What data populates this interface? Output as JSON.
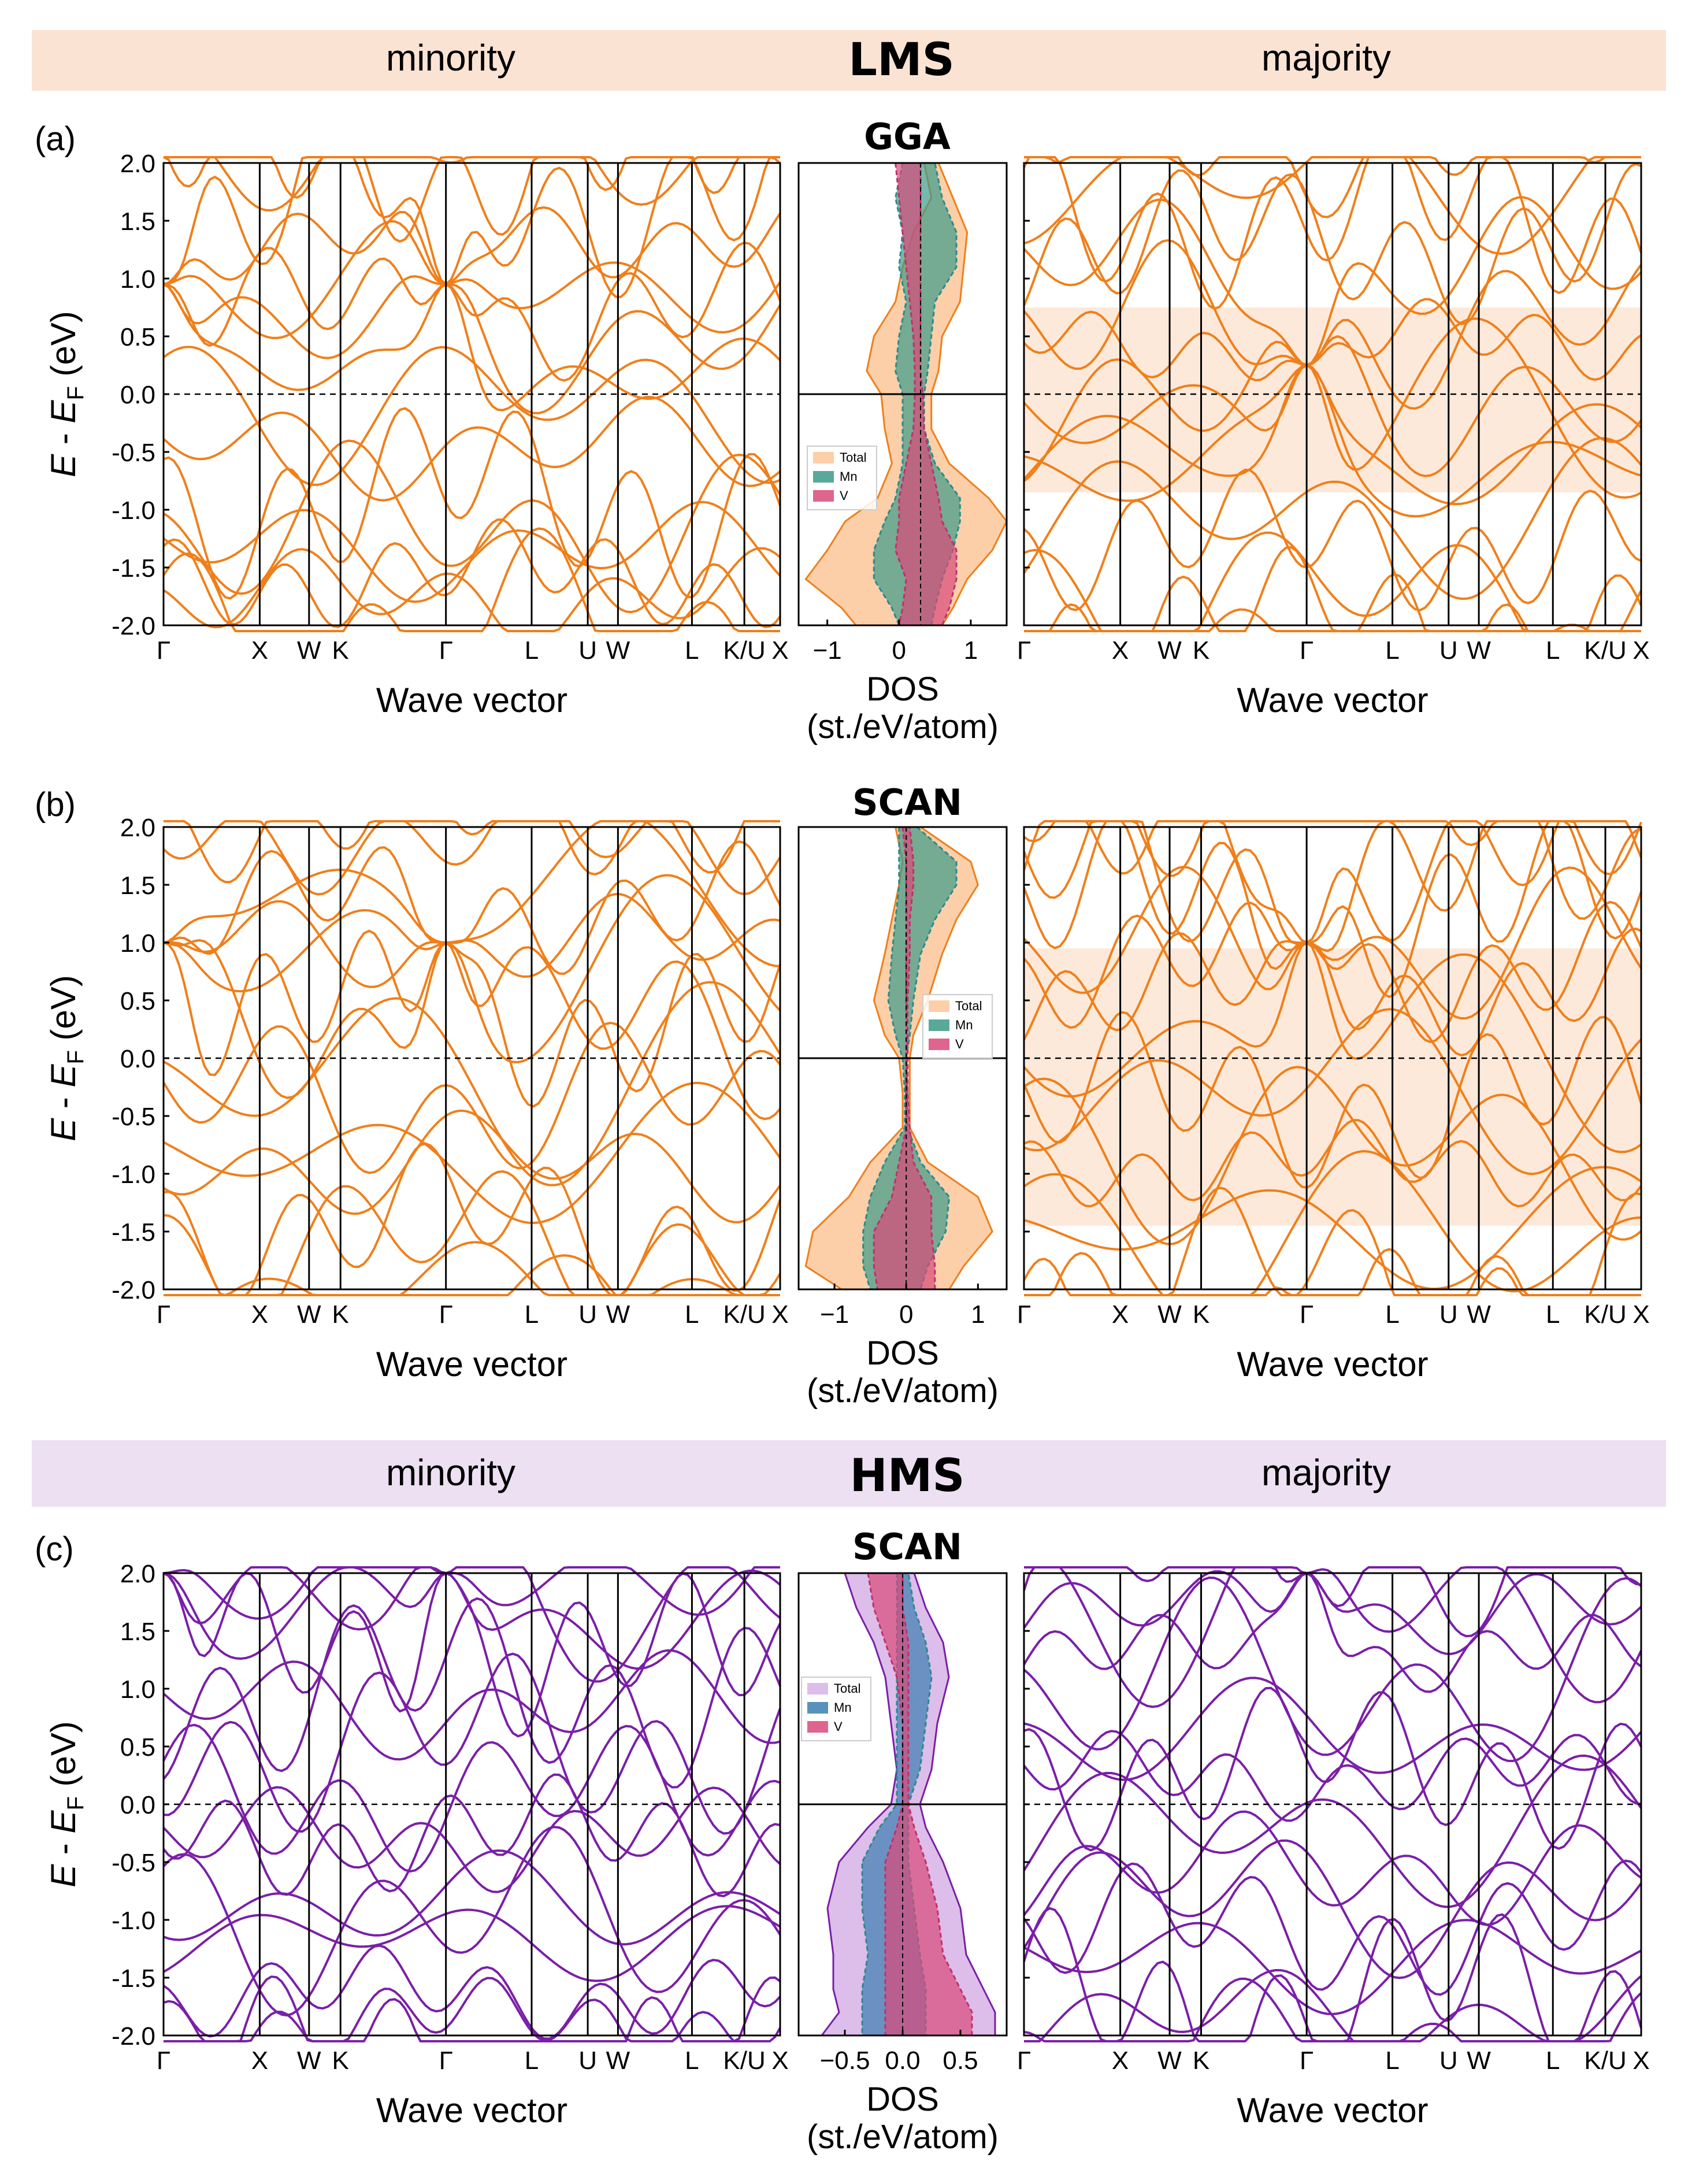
{
  "colors": {
    "lms_band_bg": "#fbe3d4",
    "hms_band_bg": "#ece0f2",
    "lms_line": "#f07f1a",
    "hms_line": "#7a1fa8",
    "lms_gap_fill": "#fde9da",
    "dos_total_lms": "#fbc79a",
    "dos_total_hms": "#d7b2e6",
    "dos_mn": "#3c9a8a",
    "dos_v": "#d94a7a",
    "dos_mn_hms": "#3a7fb0",
    "axis": "#000000"
  },
  "headers": [
    {
      "left": "minority",
      "center": "LMS",
      "right": "majority",
      "bg": "lms_band_bg"
    },
    {
      "left": "minority",
      "center": "HMS",
      "right": "majority",
      "bg": "hms_band_bg"
    }
  ],
  "shared": {
    "ylabel": "E - E_F (eV)",
    "band_xlabel": "Wave vector",
    "dos_xlabel_line1": "DOS",
    "dos_xlabel_line2": "(st./eV/atom)",
    "yticks": [
      "2.0",
      "1.5",
      "1.0",
      "0.5",
      "0.0",
      "-0.5",
      "-1.0",
      "-1.5",
      "-2.0"
    ],
    "kpath": [
      "Γ",
      "X",
      "W",
      "K",
      "Γ",
      "L",
      "U",
      "W",
      "L",
      "K/U",
      "X"
    ],
    "ylim": [
      -2.0,
      2.0
    ],
    "legend": [
      "Total",
      "Mn",
      "V"
    ]
  },
  "chart_data": [
    {
      "type": "line",
      "panel": "(a)",
      "method": "GGA",
      "state": "LMS",
      "ylim": [
        -2.0,
        2.0
      ],
      "minority": {
        "bands_at_gamma": [
          0.95,
          -1.55,
          -2.0
        ],
        "gap": null
      },
      "dos": {
        "xlim": [
          -1.4,
          1.5
        ],
        "xticks": [
          "−1",
          "0",
          "1"
        ],
        "fermi_offset": 0.3,
        "series": [
          {
            "name": "Total",
            "profile": [
              [
                2.0,
                0.35,
                0.55
              ],
              [
                1.7,
                0.45,
                0.75
              ],
              [
                1.4,
                0.2,
                0.95
              ],
              [
                1.1,
                0.05,
                0.9
              ],
              [
                0.8,
                -0.05,
                0.85
              ],
              [
                0.5,
                -0.35,
                0.6
              ],
              [
                0.2,
                -0.45,
                0.55
              ],
              [
                0.0,
                -0.25,
                0.45
              ],
              [
                -0.3,
                -0.2,
                0.45
              ],
              [
                -0.6,
                -0.1,
                0.7
              ],
              [
                -0.9,
                -0.3,
                1.25
              ],
              [
                -1.1,
                -0.75,
                1.5
              ],
              [
                -1.35,
                -1.0,
                1.3
              ],
              [
                -1.6,
                -1.3,
                0.95
              ],
              [
                -1.85,
                -0.8,
                0.75
              ],
              [
                -2.0,
                -0.6,
                0.6
              ]
            ]
          },
          {
            "name": "Mn",
            "profile": [
              [
                2.0,
                0.05,
                0.5
              ],
              [
                1.7,
                -0.05,
                0.6
              ],
              [
                1.4,
                0.05,
                0.8
              ],
              [
                1.1,
                0.0,
                0.8
              ],
              [
                0.8,
                0.1,
                0.5
              ],
              [
                0.5,
                0.0,
                0.45
              ],
              [
                0.2,
                -0.05,
                0.4
              ],
              [
                0.0,
                0.05,
                0.35
              ],
              [
                -0.3,
                0.05,
                0.35
              ],
              [
                -0.6,
                0.05,
                0.5
              ],
              [
                -0.9,
                -0.05,
                0.85
              ],
              [
                -1.1,
                -0.2,
                0.85
              ],
              [
                -1.35,
                -0.35,
                0.75
              ],
              [
                -1.6,
                -0.35,
                0.6
              ],
              [
                -1.85,
                -0.1,
                0.5
              ],
              [
                -2.0,
                0.0,
                0.45
              ]
            ]
          },
          {
            "name": "V",
            "profile": [
              [
                2.0,
                -0.05,
                0.3
              ],
              [
                1.7,
                0.0,
                0.3
              ],
              [
                1.4,
                0.05,
                0.3
              ],
              [
                1.1,
                0.1,
                0.3
              ],
              [
                0.8,
                0.15,
                0.3
              ],
              [
                0.5,
                0.2,
                0.3
              ],
              [
                0.2,
                0.22,
                0.3
              ],
              [
                0.0,
                0.22,
                0.33
              ],
              [
                -0.3,
                0.2,
                0.35
              ],
              [
                -0.6,
                0.1,
                0.45
              ],
              [
                -0.9,
                0.0,
                0.55
              ],
              [
                -1.1,
                0.0,
                0.6
              ],
              [
                -1.35,
                -0.05,
                0.8
              ],
              [
                -1.6,
                0.1,
                0.8
              ],
              [
                -1.85,
                0.05,
                0.7
              ],
              [
                -2.0,
                0.0,
                0.6
              ]
            ]
          }
        ]
      },
      "majority": {
        "gap": [
          -0.85,
          0.75
        ],
        "bands_at_gamma": [
          0.25,
          -1.5
        ]
      }
    },
    {
      "type": "line",
      "panel": "(b)",
      "method": "SCAN",
      "state": "LMS",
      "ylim": [
        -2.0,
        2.0
      ],
      "minority": {
        "bands_at_gamma": [
          1.0,
          -2.0
        ],
        "gap": null
      },
      "dos": {
        "xlim": [
          -1.5,
          1.4
        ],
        "xticks": [
          "−1",
          "0",
          "1"
        ],
        "fermi_offset": 0.0,
        "series": [
          {
            "name": "Total",
            "profile": [
              [
                2.0,
                -0.15,
                0.2
              ],
              [
                1.7,
                -0.05,
                0.9
              ],
              [
                1.5,
                -0.1,
                1.0
              ],
              [
                1.2,
                -0.2,
                0.7
              ],
              [
                0.9,
                -0.3,
                0.5
              ],
              [
                0.5,
                -0.45,
                0.3
              ],
              [
                0.2,
                -0.3,
                0.1
              ],
              [
                0.0,
                -0.1,
                0.05
              ],
              [
                -0.3,
                -0.05,
                0.05
              ],
              [
                -0.6,
                -0.05,
                0.05
              ],
              [
                -0.9,
                -0.5,
                0.3
              ],
              [
                -1.2,
                -0.8,
                1.0
              ],
              [
                -1.5,
                -1.3,
                1.2
              ],
              [
                -1.8,
                -1.4,
                0.8
              ],
              [
                -2.0,
                -0.9,
                0.6
              ]
            ]
          },
          {
            "name": "Mn",
            "profile": [
              [
                2.0,
                -0.1,
                0.15
              ],
              [
                1.7,
                -0.1,
                0.7
              ],
              [
                1.5,
                -0.1,
                0.7
              ],
              [
                1.2,
                -0.15,
                0.4
              ],
              [
                0.9,
                -0.2,
                0.2
              ],
              [
                0.5,
                -0.25,
                0.1
              ],
              [
                0.2,
                -0.15,
                0.05
              ],
              [
                0.0,
                -0.05,
                0.0
              ],
              [
                -0.3,
                -0.02,
                0.02
              ],
              [
                -0.6,
                -0.02,
                0.02
              ],
              [
                -0.9,
                -0.3,
                0.2
              ],
              [
                -1.2,
                -0.5,
                0.6
              ],
              [
                -1.5,
                -0.6,
                0.55
              ],
              [
                -1.8,
                -0.6,
                0.3
              ],
              [
                -2.0,
                -0.5,
                0.2
              ]
            ]
          },
          {
            "name": "V",
            "profile": [
              [
                2.0,
                -0.05,
                0.05
              ],
              [
                1.7,
                0.0,
                0.1
              ],
              [
                1.5,
                0.0,
                0.1
              ],
              [
                1.2,
                0.0,
                0.05
              ],
              [
                0.9,
                0.0,
                0.05
              ],
              [
                0.5,
                0.0,
                0.02
              ],
              [
                0.2,
                0.0,
                0.02
              ],
              [
                0.0,
                0.0,
                0.02
              ],
              [
                -0.3,
                0.0,
                0.02
              ],
              [
                -0.6,
                0.0,
                0.05
              ],
              [
                -0.9,
                -0.1,
                0.1
              ],
              [
                -1.2,
                -0.2,
                0.35
              ],
              [
                -1.5,
                -0.45,
                0.35
              ],
              [
                -1.8,
                -0.45,
                0.4
              ],
              [
                -2.0,
                -0.4,
                0.4
              ]
            ]
          }
        ]
      },
      "majority": {
        "gap": [
          -1.45,
          0.95
        ],
        "bands_at_gamma": [
          1.0,
          -0.15
        ]
      }
    },
    {
      "type": "line",
      "panel": "(c)",
      "method": "SCAN",
      "state": "HMS",
      "ylim": [
        -2.0,
        2.0
      ],
      "minority": {
        "bands_at_gamma": [
          2.0,
          1.4
        ],
        "gap": [
          -0.05,
          0.05
        ]
      },
      "dos": {
        "xlim": [
          -0.9,
          0.9
        ],
        "xticks": [
          "−0.5",
          "0.0",
          "0.5"
        ],
        "fermi_offset": 0.0,
        "series": [
          {
            "name": "Total",
            "profile": [
              [
                2.0,
                -0.5,
                0.1
              ],
              [
                1.7,
                -0.4,
                0.2
              ],
              [
                1.4,
                -0.25,
                0.35
              ],
              [
                1.1,
                -0.15,
                0.4
              ],
              [
                0.7,
                -0.1,
                0.3
              ],
              [
                0.3,
                -0.05,
                0.25
              ],
              [
                0.0,
                -0.1,
                0.15
              ],
              [
                -0.2,
                -0.3,
                0.2
              ],
              [
                -0.5,
                -0.55,
                0.35
              ],
              [
                -0.9,
                -0.65,
                0.5
              ],
              [
                -1.3,
                -0.6,
                0.55
              ],
              [
                -1.6,
                -0.6,
                0.7
              ],
              [
                -1.8,
                -0.55,
                0.8
              ],
              [
                -2.0,
                -0.7,
                0.8
              ]
            ]
          },
          {
            "name": "Mn",
            "profile": [
              [
                2.0,
                -0.05,
                0.05
              ],
              [
                1.7,
                -0.05,
                0.1
              ],
              [
                1.4,
                -0.05,
                0.2
              ],
              [
                1.1,
                -0.05,
                0.25
              ],
              [
                0.7,
                -0.05,
                0.2
              ],
              [
                0.3,
                -0.05,
                0.15
              ],
              [
                0.0,
                -0.05,
                0.05
              ],
              [
                -0.2,
                -0.2,
                0.05
              ],
              [
                -0.5,
                -0.35,
                0.05
              ],
              [
                -0.9,
                -0.35,
                0.1
              ],
              [
                -1.3,
                -0.3,
                0.15
              ],
              [
                -1.6,
                -0.35,
                0.2
              ],
              [
                -1.8,
                -0.35,
                0.2
              ],
              [
                -2.0,
                -0.35,
                0.2
              ]
            ]
          },
          {
            "name": "V",
            "profile": [
              [
                2.0,
                -0.3,
                0.0
              ],
              [
                1.7,
                -0.25,
                0.0
              ],
              [
                1.4,
                -0.15,
                0.05
              ],
              [
                1.1,
                -0.05,
                0.05
              ],
              [
                0.7,
                0.0,
                0.05
              ],
              [
                0.3,
                0.0,
                0.05
              ],
              [
                0.0,
                0.0,
                0.05
              ],
              [
                -0.2,
                -0.05,
                0.1
              ],
              [
                -0.5,
                -0.15,
                0.2
              ],
              [
                -0.9,
                -0.15,
                0.3
              ],
              [
                -1.3,
                -0.15,
                0.35
              ],
              [
                -1.6,
                -0.15,
                0.5
              ],
              [
                -1.8,
                -0.15,
                0.6
              ],
              [
                -2.0,
                -0.15,
                0.6
              ]
            ]
          }
        ]
      },
      "majority": {
        "gap": null,
        "bands_at_gamma": [
          2.0,
          -0.45,
          -1.65
        ]
      }
    }
  ]
}
